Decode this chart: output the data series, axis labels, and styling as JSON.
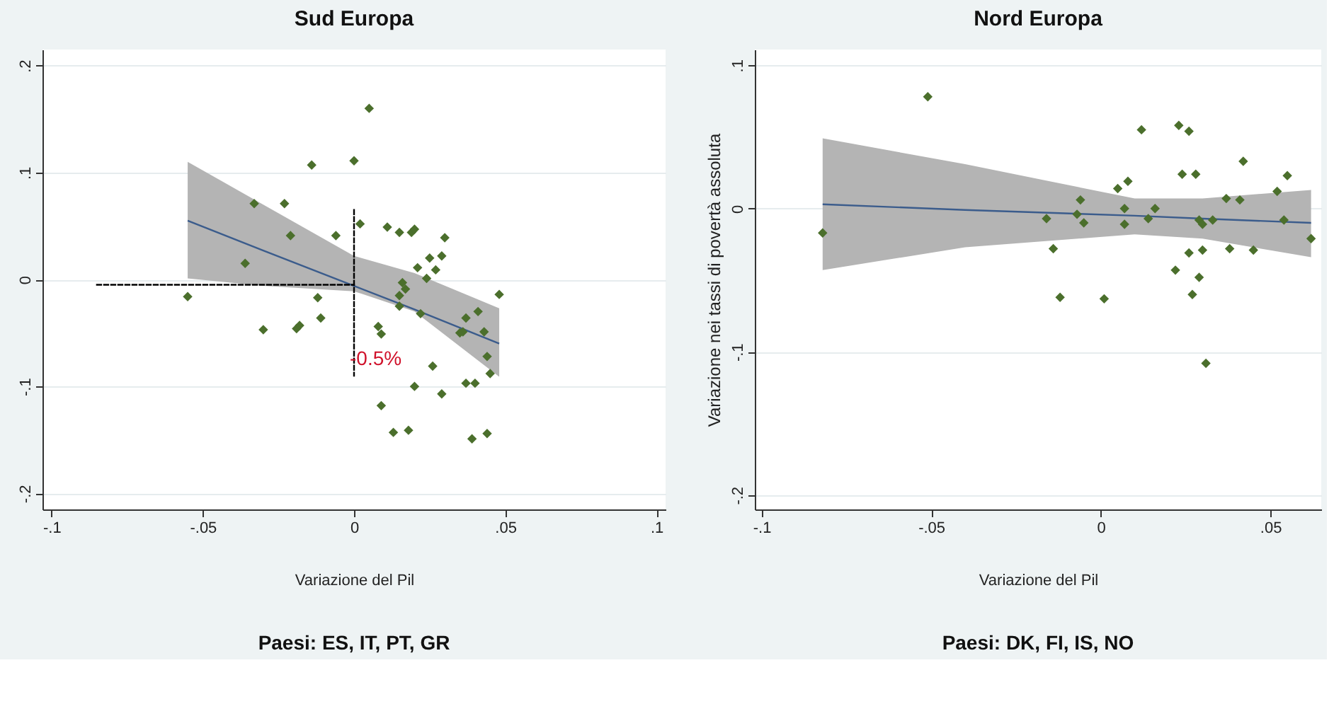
{
  "chart_data": [
    {
      "type": "scatter",
      "title": "Sud Europa",
      "xlabel": "Variazione del Pil",
      "grid": "y",
      "xlim": [
        -0.103,
        0.103
      ],
      "ylim": [
        -0.215,
        0.215
      ],
      "xticks": [
        {
          "value": -0.1,
          "label": "-.1"
        },
        {
          "value": -0.05,
          "label": "-.05"
        },
        0,
        {
          "value": 0.05,
          "label": ".05"
        },
        {
          "value": 0.1,
          "label": ".1"
        }
      ],
      "yticks": [
        {
          "value": -0.2,
          "label": "-.2"
        },
        {
          "value": -0.1,
          "label": "-.1"
        },
        0,
        {
          "value": 0.1,
          "label": ".1"
        },
        {
          "value": 0.2,
          "label": ".2"
        }
      ],
      "annotations": [
        {
          "text": "-0.5%",
          "x": 0,
          "y": -0.075
        },
        "Paesi: ES, IT, PT, GR"
      ],
      "series": [
        {
          "type": "line",
          "color": "#3b5c8c",
          "marker": "none",
          "x": [
            -0.055,
            -0.03,
            0.0,
            0.02,
            0.048
          ],
          "values": [
            0.055,
            0.027,
            -0.006,
            -0.028,
            -0.06
          ],
          "lower": [
            0.001,
            -0.006,
            -0.011,
            -0.03,
            -0.091
          ],
          "upper": [
            0.11,
            0.07,
            0.022,
            0.006,
            -0.027
          ]
        },
        {
          "color": "#4b6f2c",
          "marker": "diamond",
          "x": [
            -0.055,
            -0.036,
            -0.033,
            -0.03,
            -0.023,
            -0.021,
            -0.019,
            -0.018,
            -0.014,
            -0.012,
            -0.011,
            -0.006,
            0.0,
            0.002,
            0.005,
            0.008,
            0.009,
            0.009,
            0.011,
            0.013,
            0.015,
            0.015,
            0.015,
            0.016,
            0.017,
            0.018,
            0.019,
            0.02,
            0.02,
            0.021,
            0.022,
            0.024,
            0.025,
            0.026,
            0.027,
            0.029,
            0.029,
            0.03,
            0.035,
            0.036,
            0.037,
            0.037,
            0.039,
            0.04,
            0.041,
            0.043,
            0.044,
            0.044,
            0.045,
            0.048
          ],
          "values": [
            -0.016,
            0.015,
            0.071,
            -0.047,
            0.071,
            0.041,
            -0.046,
            -0.043,
            0.107,
            -0.017,
            -0.036,
            0.041,
            0.111,
            0.052,
            0.16,
            -0.044,
            -0.051,
            -0.118,
            0.049,
            -0.143,
            0.044,
            -0.015,
            -0.025,
            -0.003,
            -0.009,
            -0.141,
            0.044,
            0.047,
            -0.1,
            0.011,
            -0.032,
            0.001,
            0.02,
            -0.081,
            0.009,
            0.022,
            -0.107,
            0.039,
            -0.05,
            -0.049,
            -0.036,
            -0.097,
            -0.149,
            -0.097,
            -0.03,
            -0.049,
            -0.072,
            -0.144,
            -0.088,
            -0.014
          ]
        },
        {
          "type": "line",
          "color": "#000000",
          "marker": "none",
          "line_style": "dashed",
          "x": [
            -0.085,
            0.0
          ],
          "values": [
            -0.005,
            -0.005
          ]
        },
        {
          "type": "line",
          "color": "#000000",
          "marker": "none",
          "line_style": "dashed",
          "x": [
            0.0,
            0.0
          ],
          "values": [
            0.065,
            -0.09
          ]
        }
      ]
    },
    {
      "type": "scatter",
      "title": "Nord Europa",
      "xlabel": "Variazione del Pil",
      "ylabel": "Variazione nei tassi di povertà assoluta",
      "grid": "y",
      "xlim": [
        -0.102,
        0.065
      ],
      "ylim": [
        -0.21,
        0.111
      ],
      "xticks": [
        {
          "value": -0.1,
          "label": "-.1"
        },
        {
          "value": -0.05,
          "label": "-.05"
        },
        0,
        {
          "value": 0.05,
          "label": ".05"
        }
      ],
      "yticks": [
        {
          "value": -0.2,
          "label": "-.2"
        },
        {
          "value": -0.1,
          "label": "-.1"
        },
        0,
        {
          "value": 0.1,
          "label": ".1"
        }
      ],
      "annotations": [
        "Paesi: DK, FI, IS, NO"
      ],
      "series": [
        {
          "type": "line",
          "color": "#3b5c8c",
          "marker": "none",
          "x": [
            -0.082,
            -0.04,
            0.01,
            0.03,
            0.062
          ],
          "values": [
            0.003,
            -0.001,
            -0.005,
            -0.007,
            -0.01
          ],
          "lower": [
            -0.043,
            -0.027,
            -0.018,
            -0.021,
            -0.034
          ],
          "upper": [
            0.049,
            0.031,
            0.007,
            0.007,
            0.013
          ]
        },
        {
          "color": "#4b6f2c",
          "marker": "diamond",
          "x": [
            -0.082,
            -0.051,
            -0.016,
            -0.014,
            -0.012,
            -0.007,
            -0.006,
            -0.005,
            0.001,
            0.005,
            0.007,
            0.007,
            0.008,
            0.012,
            0.014,
            0.016,
            0.022,
            0.023,
            0.024,
            0.026,
            0.026,
            0.027,
            0.028,
            0.029,
            0.029,
            0.03,
            0.03,
            0.031,
            0.033,
            0.037,
            0.038,
            0.041,
            0.042,
            0.045,
            0.052,
            0.054,
            0.055,
            0.062
          ],
          "values": [
            -0.017,
            0.078,
            -0.007,
            -0.028,
            -0.062,
            -0.004,
            0.006,
            -0.01,
            -0.063,
            0.014,
            0.0,
            -0.011,
            0.019,
            0.055,
            -0.007,
            0.0,
            -0.043,
            0.058,
            0.024,
            0.054,
            -0.031,
            -0.06,
            0.024,
            -0.048,
            -0.008,
            -0.029,
            -0.011,
            -0.108,
            -0.008,
            0.007,
            -0.028,
            0.006,
            0.033,
            -0.029,
            0.012,
            -0.008,
            0.023,
            -0.021
          ]
        }
      ]
    }
  ]
}
